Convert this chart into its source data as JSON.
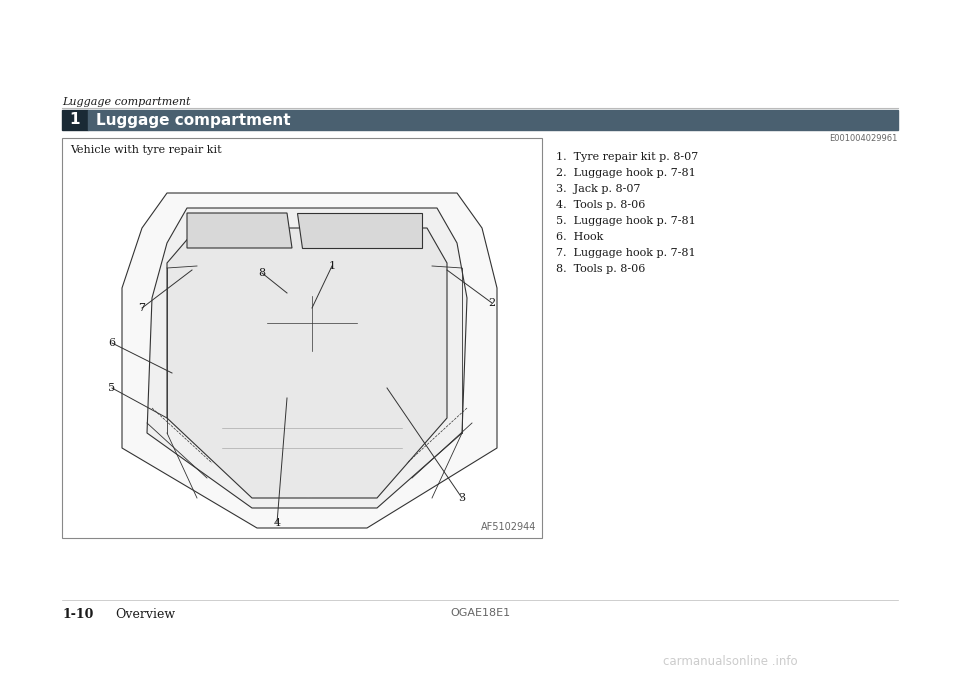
{
  "page_bg": "#ffffff",
  "section_label": "1",
  "section_label_bg": "#1a2a35",
  "section_label_fg": "#ffffff",
  "section_title": "Luggage compartment",
  "section_title_bg": "#4a6070",
  "section_title_fg": "#ffffff",
  "breadcrumb": "Luggage compartment",
  "ref_code": "E001004029961",
  "image_label": "Vehicle with tyre repair kit",
  "image_credit": "AF5102944",
  "list_items": [
    "1.  Tyre repair kit p. 8-07",
    "2.  Luggage hook p. 7-81",
    "3.  Jack p. 8-07",
    "4.  Tools p. 8-06",
    "5.  Luggage hook p. 7-81",
    "6.  Hook",
    "7.  Luggage hook p. 7-81",
    "8.  Tools p. 8-06"
  ],
  "footer_left": "1-10",
  "footer_center_label": "Overview",
  "footer_right": "OGAE18E1",
  "watermark": "carmanualsonline .info",
  "header_line_color": "#bbbbbb",
  "text_color": "#1a1a1a",
  "light_text": "#666666",
  "draw_color": "#333333"
}
